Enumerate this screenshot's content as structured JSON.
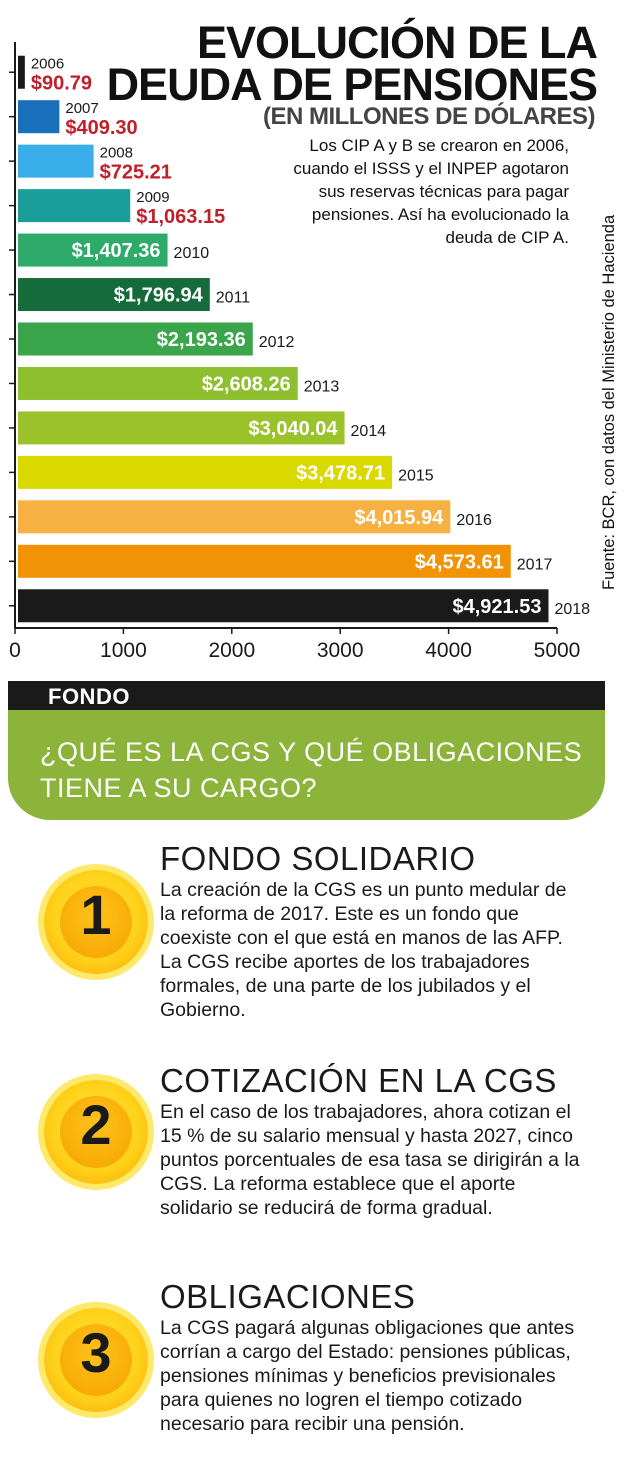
{
  "header": {
    "title_line1": "EVOLUCIÓN DE LA",
    "title_line2": "DEUDA DE PENSIONES",
    "subtitle": "(EN MILLONES DE DÓLARES)",
    "note": "Los CIP A y B se crearon en 2006, cuando el ISSS y el INPEP agotaron sus reservas técnicas para pagar pensiones. Así ha evolucionado la deuda de CIP A.",
    "source": "Fuente: BCR, con datos del Ministerio de Hacienda"
  },
  "chart_data": {
    "type": "bar",
    "orientation": "horizontal",
    "title": "EVOLUCIÓN DE LA DEUDA DE PENSIONES",
    "subtitle": "(EN MILLONES DE DÓLARES)",
    "categories": [
      "2006",
      "2007",
      "2008",
      "2009",
      "2010",
      "2011",
      "2012",
      "2013",
      "2014",
      "2015",
      "2016",
      "2017",
      "2018"
    ],
    "values": [
      90.79,
      409.3,
      725.21,
      1063.15,
      1407.36,
      1796.94,
      2193.36,
      2608.26,
      3040.04,
      3478.71,
      4015.94,
      4573.61,
      4921.53
    ],
    "value_labels": [
      "$90.79",
      "$409.30",
      "$725.21",
      "$1,063.15",
      "$1,407.36",
      "$1,796.94",
      "$2,193.36",
      "$2,608.26",
      "$3,040.04",
      "$3,478.71",
      "$4,015.94",
      "$4,573.61",
      "$4,921.53"
    ],
    "colors": [
      "#1a1a1a",
      "#1a6fba",
      "#3aaee8",
      "#1b9e9b",
      "#2eaa6b",
      "#156b3a",
      "#3aa54a",
      "#8dbf2e",
      "#9bc22a",
      "#d9d900",
      "#f7b042",
      "#f29305",
      "#1a1a1a"
    ],
    "label_outside_color": "#c0202a",
    "xlim": [
      0,
      5000
    ],
    "xticks": [
      0,
      1000,
      2000,
      3000,
      4000,
      5000
    ],
    "grid": false,
    "legend": "none"
  },
  "section": {
    "tag": "FONDO",
    "question_line1": "¿QUÉ ES LA CGS Y QUÉ OBLIGACIONES",
    "question_line2": "TIENE A SU CARGO?"
  },
  "items": [
    {
      "number": "1",
      "title": "FONDO SOLIDARIO",
      "body": "La creación de la CGS es un punto medular de la reforma de 2017. Este es un fondo que coexiste con el que está en manos de las AFP. La CGS recibe aportes de los trabajadores formales, de una parte de los jubilados y el Gobierno."
    },
    {
      "number": "2",
      "title": "COTIZACIÓN EN LA CGS",
      "body": "En el caso de los trabajadores, ahora cotizan el 15 % de su salario mensual y hasta 2027, cinco puntos porcentuales de esa tasa se dirigirán a la CGS. La reforma establece que el aporte solidario se reducirá de forma gradual."
    },
    {
      "number": "3",
      "title": "OBLIGACIONES",
      "body": "La CGS pagará algunas obligaciones que antes corrían a cargo del Estado: pensiones públicas, pensiones mínimas y beneficios previsionales para quienes no logren el tiempo cotizado necesario para recibir una pensión."
    }
  ]
}
